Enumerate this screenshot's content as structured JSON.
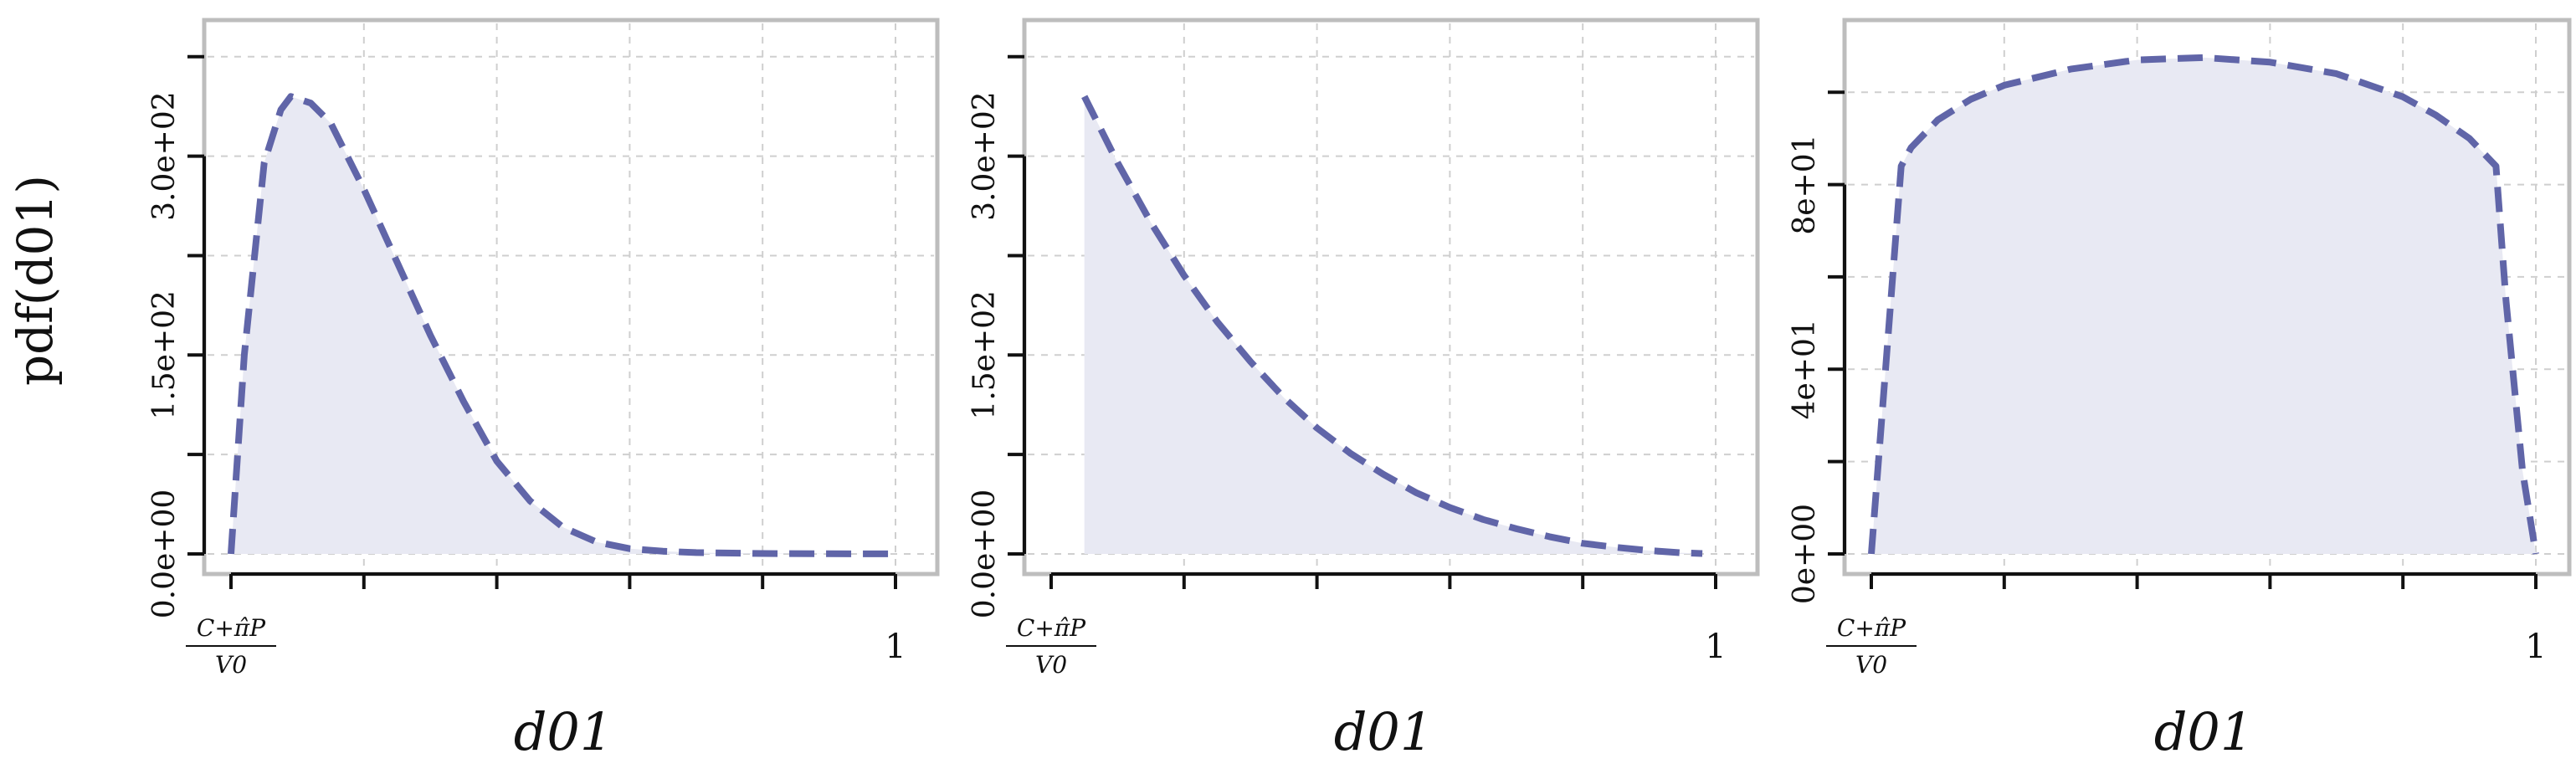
{
  "shared": {
    "ylabel": "pdf(d01)",
    "xlabel": "d01",
    "x_tick_left_num": "C+π̂P",
    "x_tick_left_den": "V0",
    "x_tick_right": "1"
  },
  "colors": {
    "line": "#6065a8",
    "fill": "#e8e9f3",
    "frame": "#bdbdbd",
    "grid": "#cfcfcf",
    "axis": "#111111"
  },
  "chart_data": [
    {
      "type": "area",
      "xlabel": "d01",
      "ylabel": "pdf(d01)",
      "xlim": [
        0,
        1
      ],
      "ylim": [
        0,
        3.9
      ],
      "y_display_scale": 100,
      "yticks_labeled": [
        0,
        1.5,
        3.0
      ],
      "ytick_labels": [
        "0.0e+00",
        "1.5e+02",
        "3.0e+02"
      ],
      "grid": true,
      "series": [
        {
          "x": [
            0,
            0.02,
            0.05,
            0.075,
            0.09,
            0.12,
            0.15,
            0.17,
            0.2,
            0.25,
            0.3,
            0.35,
            0.4,
            0.45,
            0.5,
            0.55,
            0.6,
            0.65,
            0.7,
            0.8,
            0.9,
            1.0
          ],
          "values": [
            0,
            1.5,
            2.95,
            3.35,
            3.45,
            3.4,
            3.25,
            3.05,
            2.75,
            2.2,
            1.65,
            1.15,
            0.7,
            0.4,
            0.2,
            0.09,
            0.04,
            0.02,
            0.01,
            0.003,
            0.001,
            0.0005
          ]
        }
      ]
    },
    {
      "type": "area",
      "xlabel": "d01",
      "ylabel": "",
      "xlim": [
        0,
        1
      ],
      "ylim": [
        0,
        3.9
      ],
      "y_display_scale": 100,
      "yticks_labeled": [
        0,
        1.5,
        3.0
      ],
      "ytick_labels": [
        "0.0e+00",
        "1.5e+02",
        "3.0e+02"
      ],
      "grid": true,
      "series": [
        {
          "x": [
            0.05,
            0.1,
            0.15,
            0.2,
            0.25,
            0.3,
            0.35,
            0.4,
            0.45,
            0.5,
            0.55,
            0.6,
            0.65,
            0.7,
            0.75,
            0.8,
            0.85,
            0.9,
            0.95,
            0.98
          ],
          "values": [
            3.45,
            2.95,
            2.5,
            2.1,
            1.75,
            1.45,
            1.18,
            0.95,
            0.76,
            0.6,
            0.46,
            0.35,
            0.26,
            0.19,
            0.13,
            0.08,
            0.05,
            0.025,
            0.008,
            0.003
          ]
        }
      ]
    },
    {
      "type": "area",
      "xlabel": "d01",
      "ylabel": "",
      "xlim": [
        0,
        1
      ],
      "ylim": [
        0,
        112
      ],
      "yticks_labeled": [
        0,
        40,
        80
      ],
      "ytick_labels": [
        "0e+00",
        "4e+01",
        "8e+01"
      ],
      "grid": true,
      "series": [
        {
          "x": [
            0,
            0.045,
            0.06,
            0.1,
            0.15,
            0.2,
            0.3,
            0.4,
            0.5,
            0.6,
            0.7,
            0.8,
            0.85,
            0.9,
            0.94,
            0.955,
            0.98,
            1.0
          ],
          "values": [
            0,
            84,
            88,
            94,
            98.5,
            101.5,
            105,
            107,
            107.5,
            106.5,
            104,
            99,
            95,
            90,
            84,
            55,
            18,
            0
          ]
        }
      ]
    }
  ]
}
